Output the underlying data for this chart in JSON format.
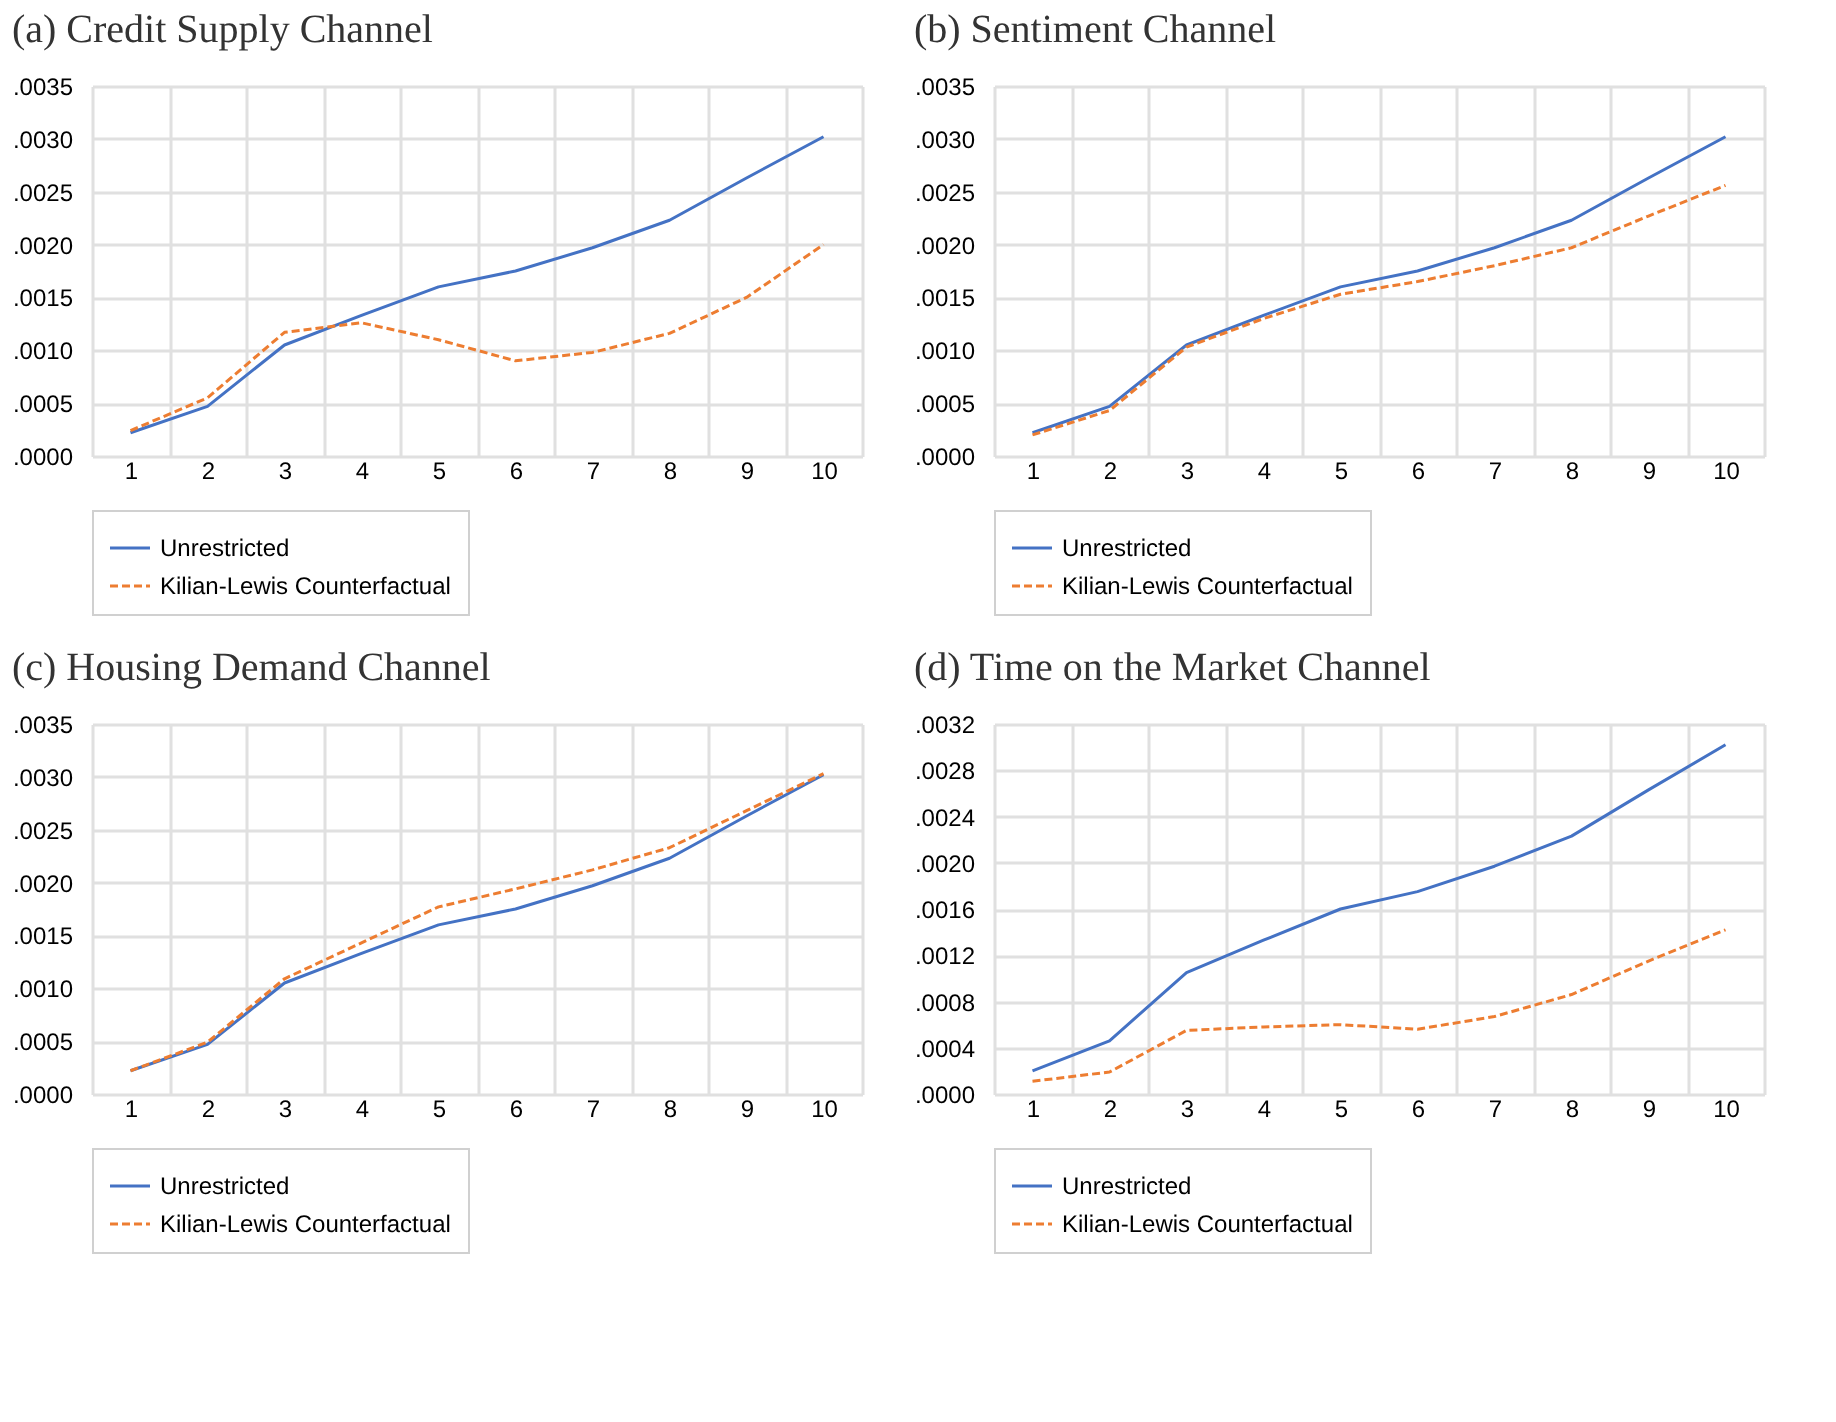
{
  "chart_data": [
    {
      "type": "line",
      "title": "(a) Credit Supply Channel",
      "categories": [
        "1",
        "2",
        "3",
        "4",
        "5",
        "6",
        "7",
        "8",
        "9",
        "10"
      ],
      "series": [
        {
          "name": "Unrestricted",
          "color": "#4472c4",
          "line_style": "solid",
          "values": [
            0.00022,
            0.00047,
            0.00105,
            0.00133,
            0.0016,
            0.00175,
            0.00197,
            0.00223,
            0.00263,
            0.00302
          ]
        },
        {
          "name": "Kilian-Lewis Counterfactual",
          "color": "#ed7d31",
          "line_style": "dashed",
          "values": [
            0.00024,
            0.00055,
            0.00117,
            0.00126,
            0.0011,
            0.0009,
            0.00098,
            0.00116,
            0.0015,
            0.002
          ]
        }
      ],
      "ylim": [
        0,
        0.0035
      ],
      "yticks": [
        {
          "value": 0,
          "label": ".0000"
        },
        {
          "value": 0.0005,
          "label": ".0005"
        },
        {
          "value": 0.001,
          "label": ".0010"
        },
        {
          "value": 0.0015,
          "label": ".0015"
        },
        {
          "value": 0.002,
          "label": ".0020"
        },
        {
          "value": 0.0025,
          "label": ".0025"
        },
        {
          "value": 0.003,
          "label": ".0030"
        },
        {
          "value": 0.0035,
          "label": ".0035"
        }
      ],
      "grid": true,
      "legend": "bottom"
    },
    {
      "type": "line",
      "title": "(b) Sentiment Channel",
      "categories": [
        "1",
        "2",
        "3",
        "4",
        "5",
        "6",
        "7",
        "8",
        "9",
        "10"
      ],
      "series": [
        {
          "name": "Unrestricted",
          "color": "#4472c4",
          "line_style": "solid",
          "values": [
            0.00022,
            0.00047,
            0.00105,
            0.00133,
            0.0016,
            0.00175,
            0.00197,
            0.00223,
            0.00263,
            0.00302
          ]
        },
        {
          "name": "Kilian-Lewis Counterfactual",
          "color": "#ed7d31",
          "line_style": "dashed",
          "values": [
            0.0002,
            0.00043,
            0.00103,
            0.0013,
            0.00153,
            0.00165,
            0.0018,
            0.00197,
            0.00227,
            0.00256
          ]
        }
      ],
      "ylim": [
        0,
        0.0035
      ],
      "yticks": [
        {
          "value": 0,
          "label": ".0000"
        },
        {
          "value": 0.0005,
          "label": ".0005"
        },
        {
          "value": 0.001,
          "label": ".0010"
        },
        {
          "value": 0.0015,
          "label": ".0015"
        },
        {
          "value": 0.002,
          "label": ".0020"
        },
        {
          "value": 0.0025,
          "label": ".0025"
        },
        {
          "value": 0.003,
          "label": ".0030"
        },
        {
          "value": 0.0035,
          "label": ".0035"
        }
      ],
      "grid": true,
      "legend": "bottom"
    },
    {
      "type": "line",
      "title": "(c) Housing Demand Channel",
      "categories": [
        "1",
        "2",
        "3",
        "4",
        "5",
        "6",
        "7",
        "8",
        "9",
        "10"
      ],
      "series": [
        {
          "name": "Unrestricted",
          "color": "#4472c4",
          "line_style": "solid",
          "values": [
            0.00022,
            0.00047,
            0.00105,
            0.00133,
            0.0016,
            0.00175,
            0.00197,
            0.00223,
            0.00263,
            0.00302
          ]
        },
        {
          "name": "Kilian-Lewis Counterfactual",
          "color": "#ed7d31",
          "line_style": "dashed",
          "values": [
            0.00022,
            0.00049,
            0.00109,
            0.00143,
            0.00177,
            0.00194,
            0.00212,
            0.00233,
            0.00268,
            0.00303
          ]
        }
      ],
      "ylim": [
        0,
        0.0035
      ],
      "yticks": [
        {
          "value": 0,
          "label": ".0000"
        },
        {
          "value": 0.0005,
          "label": ".0005"
        },
        {
          "value": 0.001,
          "label": ".0010"
        },
        {
          "value": 0.0015,
          "label": ".0015"
        },
        {
          "value": 0.002,
          "label": ".0020"
        },
        {
          "value": 0.0025,
          "label": ".0025"
        },
        {
          "value": 0.003,
          "label": ".0030"
        },
        {
          "value": 0.0035,
          "label": ".0035"
        }
      ],
      "grid": true,
      "legend": "bottom"
    },
    {
      "type": "line",
      "title": "(d) Time on the Market Channel",
      "categories": [
        "1",
        "2",
        "3",
        "4",
        "5",
        "6",
        "7",
        "8",
        "9",
        "10"
      ],
      "series": [
        {
          "name": "Unrestricted",
          "color": "#4472c4",
          "line_style": "solid",
          "values": [
            0.0002,
            0.00046,
            0.00105,
            0.00133,
            0.0016,
            0.00175,
            0.00197,
            0.00223,
            0.00263,
            0.00302
          ]
        },
        {
          "name": "Kilian-Lewis Counterfactual",
          "color": "#ed7d31",
          "line_style": "dashed",
          "values": [
            0.00011,
            0.00019,
            0.00055,
            0.00058,
            0.0006,
            0.00056,
            0.00067,
            0.00086,
            0.00115,
            0.00142
          ]
        }
      ],
      "ylim": [
        0,
        0.0032
      ],
      "yticks": [
        {
          "value": 0,
          "label": ".0000"
        },
        {
          "value": 0.0004,
          "label": ".0004"
        },
        {
          "value": 0.0008,
          "label": ".0008"
        },
        {
          "value": 0.0012,
          "label": ".0012"
        },
        {
          "value": 0.0016,
          "label": ".0016"
        },
        {
          "value": 0.002,
          "label": ".0020"
        },
        {
          "value": 0.0024,
          "label": ".0024"
        },
        {
          "value": 0.0028,
          "label": ".0028"
        },
        {
          "value": 0.0032,
          "label": ".0032"
        }
      ],
      "grid": true,
      "legend": "bottom"
    }
  ]
}
